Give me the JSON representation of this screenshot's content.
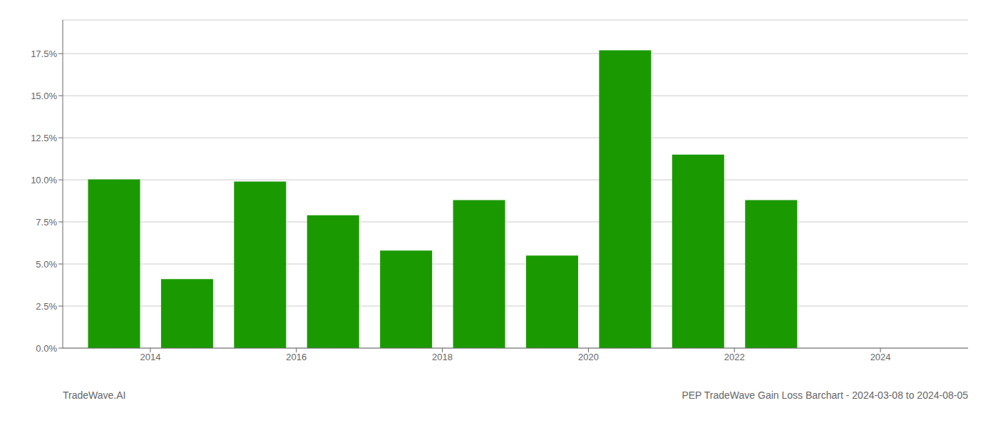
{
  "chart_data": {
    "type": "bar",
    "title": "PEP TradeWave Gain Loss Barchart - 2024-03-08 to 2024-08-05",
    "annotations": [
      "TradeWave.AI"
    ],
    "x": [
      2013,
      2014,
      2015,
      2016,
      2017,
      2018,
      2019,
      2020,
      2021,
      2022
    ],
    "values": [
      0.1003,
      0.041,
      0.099,
      0.079,
      0.058,
      0.088,
      0.055,
      0.177,
      0.115,
      0.088
    ],
    "color": "#1a9a00",
    "xlim": [
      2012.3,
      2024.7
    ],
    "xticks": [
      {
        "value": 2013.5,
        "label": "2014"
      },
      {
        "value": 2015.5,
        "label": "2016"
      },
      {
        "value": 2017.5,
        "label": "2018"
      },
      {
        "value": 2019.5,
        "label": "2020"
      },
      {
        "value": 2021.5,
        "label": "2022"
      },
      {
        "value": 2023.5,
        "label": "2024"
      }
    ],
    "ylim": [
      0.0,
      0.195
    ],
    "yticks": [
      {
        "value": 0.0,
        "label": "0.0%"
      },
      {
        "value": 0.025,
        "label": "2.5%"
      },
      {
        "value": 0.05,
        "label": "5.0%"
      },
      {
        "value": 0.075,
        "label": "7.5%"
      },
      {
        "value": 0.1,
        "label": "10.0%"
      },
      {
        "value": 0.125,
        "label": "12.5%"
      },
      {
        "value": 0.15,
        "label": "15.0%"
      },
      {
        "value": 0.175,
        "label": "17.5%"
      }
    ],
    "grid": true
  }
}
